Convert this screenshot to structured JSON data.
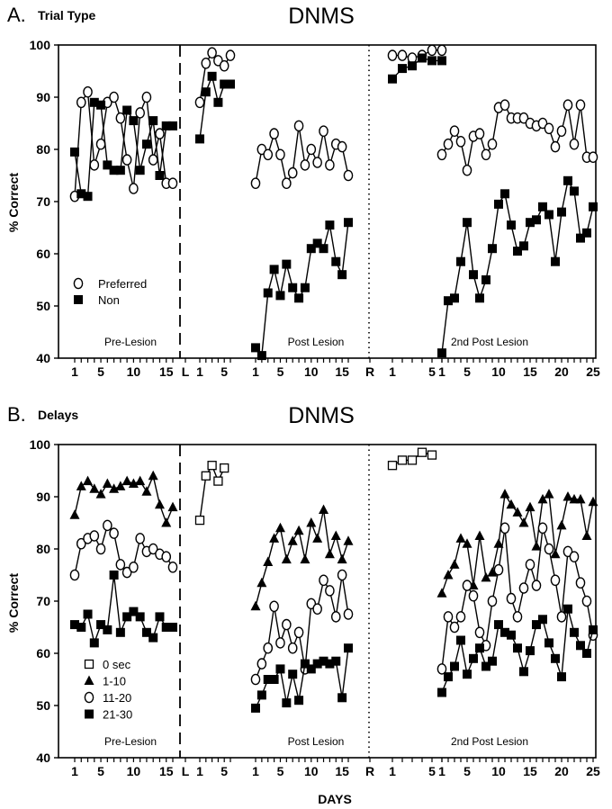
{
  "chart_data": [
    {
      "type": "line",
      "panel_letter": "A.",
      "subtitle": "Trial Type",
      "title": "DNMS",
      "ylabel": "% Correct",
      "ylim": [
        40,
        100
      ],
      "yticks": [
        "40",
        "50",
        "60",
        "70",
        "80",
        "90",
        "100"
      ],
      "phase_labels": [
        "Pre-Lesion",
        "Post Lesion",
        "2nd Post Lesion"
      ],
      "legend": {
        "placement": "lower-left",
        "entries": [
          "Preferred",
          "Non"
        ]
      },
      "series": [
        {
          "name": "Preferred",
          "marker": "open-circle",
          "segments": [
            {
              "x": [
                1,
                2,
                3,
                4,
                5,
                6,
                7,
                8,
                9,
                10,
                11,
                12,
                13,
                14,
                15,
                16
              ],
              "y": [
                71,
                89,
                91,
                77,
                81,
                89,
                90,
                86,
                78,
                72.5,
                87,
                90,
                78,
                83,
                73.5,
                73.5
              ]
            },
            {
              "x": [
                1,
                2,
                3,
                4,
                5,
                6
              ],
              "y": [
                89,
                96.5,
                98.5,
                97,
                96,
                98
              ]
            },
            {
              "x": [
                1,
                2,
                3,
                4,
                5,
                6,
                7,
                8,
                9,
                10,
                11,
                12,
                13,
                14,
                15,
                16
              ],
              "y": [
                73.5,
                80,
                79,
                83,
                79,
                73.5,
                75.5,
                84.5,
                77,
                80,
                77.5,
                83.5,
                77,
                81,
                80.5,
                75
              ]
            },
            {
              "x": [
                1,
                2,
                3,
                4,
                5,
                6
              ],
              "y": [
                98,
                98,
                97.5,
                98,
                99,
                99
              ]
            },
            {
              "x": [
                1,
                2,
                3,
                4,
                5,
                6,
                7,
                8,
                9,
                10,
                11,
                12,
                13,
                14,
                15,
                16,
                17,
                18,
                19,
                20,
                21,
                22,
                23,
                24,
                25
              ],
              "y": [
                79,
                81,
                83.5,
                81.5,
                76,
                82.5,
                83,
                79,
                81,
                88,
                88.5,
                86,
                86,
                86,
                85,
                84.5,
                85,
                84,
                80.5,
                83.5,
                88.5,
                81,
                88.5,
                78.5,
                78.5
              ]
            }
          ]
        },
        {
          "name": "Non",
          "marker": "filled-square",
          "segments": [
            {
              "x": [
                1,
                2,
                3,
                4,
                5,
                6,
                7,
                8,
                9,
                10,
                11,
                12,
                13,
                14,
                15,
                16
              ],
              "y": [
                79.5,
                71.5,
                71,
                89,
                88.5,
                77,
                76,
                76,
                87.5,
                85.5,
                76,
                81,
                85.5,
                75,
                84.5,
                84.5
              ]
            },
            {
              "x": [
                1,
                2,
                3,
                4,
                5,
                6
              ],
              "y": [
                82,
                91,
                94,
                89,
                92.5,
                92.5
              ]
            },
            {
              "x": [
                1,
                2,
                3,
                4,
                5,
                6,
                7,
                8,
                9,
                10,
                11,
                12,
                13,
                14,
                15,
                16
              ],
              "y": [
                42,
                40.5,
                52.5,
                57,
                52,
                58,
                53.5,
                51.5,
                53.5,
                61,
                62,
                61,
                65.5,
                58.5,
                56,
                66
              ]
            },
            {
              "x": [
                1,
                2,
                3,
                4,
                5,
                6
              ],
              "y": [
                93.5,
                95.5,
                96,
                97.5,
                97,
                97
              ]
            },
            {
              "x": [
                1,
                2,
                3,
                4,
                5,
                6,
                7,
                8,
                9,
                10,
                11,
                12,
                13,
                14,
                15,
                16,
                17,
                18,
                19,
                20,
                21,
                22,
                23,
                24,
                25
              ],
              "y": [
                41,
                51,
                51.5,
                58.5,
                66,
                56,
                51.5,
                55,
                61,
                69.5,
                71.5,
                65.5,
                60.5,
                61.5,
                66,
                66.5,
                69,
                67.5,
                58.5,
                68,
                74,
                72,
                63,
                64,
                69
              ]
            }
          ]
        }
      ]
    },
    {
      "type": "line",
      "panel_letter": "B.",
      "subtitle": "Delays",
      "title": "DNMS",
      "ylabel": "% Correct",
      "xlabel": "DAYS",
      "ylim": [
        40,
        100
      ],
      "yticks": [
        "40",
        "50",
        "60",
        "70",
        "80",
        "90",
        "100"
      ],
      "xticks_by_section": [
        [
          "1",
          "5",
          "10",
          "15"
        ],
        [
          "L"
        ],
        [
          "1",
          "5"
        ],
        [
          "1",
          "5",
          "10",
          "15"
        ],
        [
          "R"
        ],
        [
          "1",
          "5"
        ],
        [
          "1",
          "5",
          "10",
          "15",
          "20",
          "25"
        ]
      ],
      "phase_labels": [
        "Pre-Lesion",
        "Post Lesion",
        "2nd Post Lesion"
      ],
      "legend": {
        "placement": "lower-left",
        "entries": [
          "0 sec",
          "1-10",
          "11-20",
          "21-30"
        ]
      },
      "series": [
        {
          "name": "0 sec",
          "marker": "open-square",
          "segments": [
            {
              "x": [
                1,
                2,
                3,
                4,
                5
              ],
              "y": [
                85.5,
                94,
                96,
                93,
                95.5
              ]
            },
            {
              "x": [
                1,
                2,
                3,
                4,
                5
              ],
              "y": [
                96,
                97,
                97,
                98.5,
                98
              ]
            }
          ]
        },
        {
          "name": "1-10",
          "marker": "filled-triangle",
          "segments": [
            {
              "x": [
                1,
                2,
                3,
                4,
                5,
                6,
                7,
                8,
                9,
                10,
                11,
                12,
                13,
                14,
                15,
                16
              ],
              "y": [
                86.5,
                92,
                93,
                91.5,
                90.5,
                92.5,
                91.5,
                92,
                93,
                92.5,
                93,
                91,
                94,
                88.5,
                85,
                88
              ]
            },
            {
              "x": [
                1,
                2,
                3,
                4,
                5,
                6,
                7,
                8,
                9,
                10,
                11,
                12,
                13,
                14,
                15,
                16
              ],
              "y": [
                69,
                73.5,
                77.5,
                82,
                84,
                78,
                81.5,
                83.5,
                78,
                85,
                82,
                87.5,
                79,
                82.5,
                78,
                81.5
              ]
            },
            {
              "x": [
                1,
                2,
                3,
                4,
                5,
                6,
                7,
                8,
                9,
                10,
                11,
                12,
                13,
                14,
                15,
                16,
                17,
                18,
                19,
                20,
                21,
                22,
                23,
                24,
                25
              ],
              "y": [
                71.5,
                75,
                77,
                82,
                81,
                73,
                82.5,
                74.5,
                75.5,
                81,
                90.5,
                88.5,
                87,
                85,
                88,
                80.5,
                89.5,
                90.5,
                79,
                84.5,
                90,
                89.5,
                89.5,
                82.5,
                89
              ]
            }
          ]
        },
        {
          "name": "11-20",
          "marker": "open-circle",
          "segments": [
            {
              "x": [
                1,
                2,
                3,
                4,
                5,
                6,
                7,
                8,
                9,
                10,
                11,
                12,
                13,
                14,
                15,
                16
              ],
              "y": [
                75,
                81,
                82,
                82.5,
                80,
                84.5,
                83,
                77,
                75.5,
                76.5,
                82,
                79.5,
                80,
                79,
                78.5,
                76.5
              ]
            },
            {
              "x": [
                1,
                2,
                3,
                4,
                5,
                6,
                7,
                8,
                9,
                10,
                11,
                12,
                13,
                14,
                15,
                16
              ],
              "y": [
                55,
                58,
                61,
                69,
                62,
                65.5,
                61,
                64,
                57,
                69.5,
                68.5,
                74,
                72,
                67,
                75,
                67.5
              ]
            },
            {
              "x": [
                1,
                2,
                3,
                4,
                5,
                6,
                7,
                8,
                9,
                10,
                11,
                12,
                13,
                14,
                15,
                16,
                17,
                18,
                19,
                20,
                21,
                22,
                23,
                24,
                25
              ],
              "y": [
                57,
                67,
                65,
                67,
                73,
                71,
                64,
                61.5,
                70,
                76,
                84,
                70.5,
                67,
                72.5,
                77,
                73,
                84,
                80,
                74,
                67,
                79.5,
                78.5,
                73.5,
                70,
                63.5
              ]
            }
          ]
        },
        {
          "name": "21-30",
          "marker": "filled-square",
          "segments": [
            {
              "x": [
                1,
                2,
                3,
                4,
                5,
                6,
                7,
                8,
                9,
                10,
                11,
                12,
                13,
                14,
                15,
                16
              ],
              "y": [
                65.5,
                65,
                67.5,
                62,
                65.5,
                64.5,
                75,
                64,
                67,
                68,
                67,
                64,
                63,
                67,
                65,
                65
              ]
            },
            {
              "x": [
                1,
                2,
                3,
                4,
                5,
                6,
                7,
                8,
                9,
                10,
                11,
                12,
                13,
                14,
                15,
                16
              ],
              "y": [
                49.5,
                52,
                55,
                55,
                57,
                50.5,
                56,
                51,
                58,
                57,
                58,
                58.5,
                58,
                58.5,
                51.5,
                61
              ]
            },
            {
              "x": [
                1,
                2,
                3,
                4,
                5,
                6,
                7,
                8,
                9,
                10,
                11,
                12,
                13,
                14,
                15,
                16,
                17,
                18,
                19,
                20,
                21,
                22,
                23,
                24,
                25
              ],
              "y": [
                52.5,
                55.5,
                57.5,
                62.5,
                56,
                59,
                61,
                57.5,
                58.5,
                65.5,
                64,
                63.5,
                61,
                56.5,
                60.5,
                65.5,
                66.5,
                62,
                59,
                55.5,
                68.5,
                64,
                61.5,
                60,
                64.5
              ]
            }
          ]
        }
      ]
    }
  ],
  "x_axis": {
    "xticks_by_section": [
      [
        "1",
        "5",
        "10",
        "15"
      ],
      [
        "L"
      ],
      [
        "1",
        "5"
      ],
      [
        "1",
        "5",
        "10",
        "15"
      ],
      [
        "R"
      ],
      [
        "1",
        "5"
      ],
      [
        "1",
        "5",
        "10",
        "15",
        "20",
        "25"
      ]
    ],
    "xlabel": "DAYS"
  }
}
